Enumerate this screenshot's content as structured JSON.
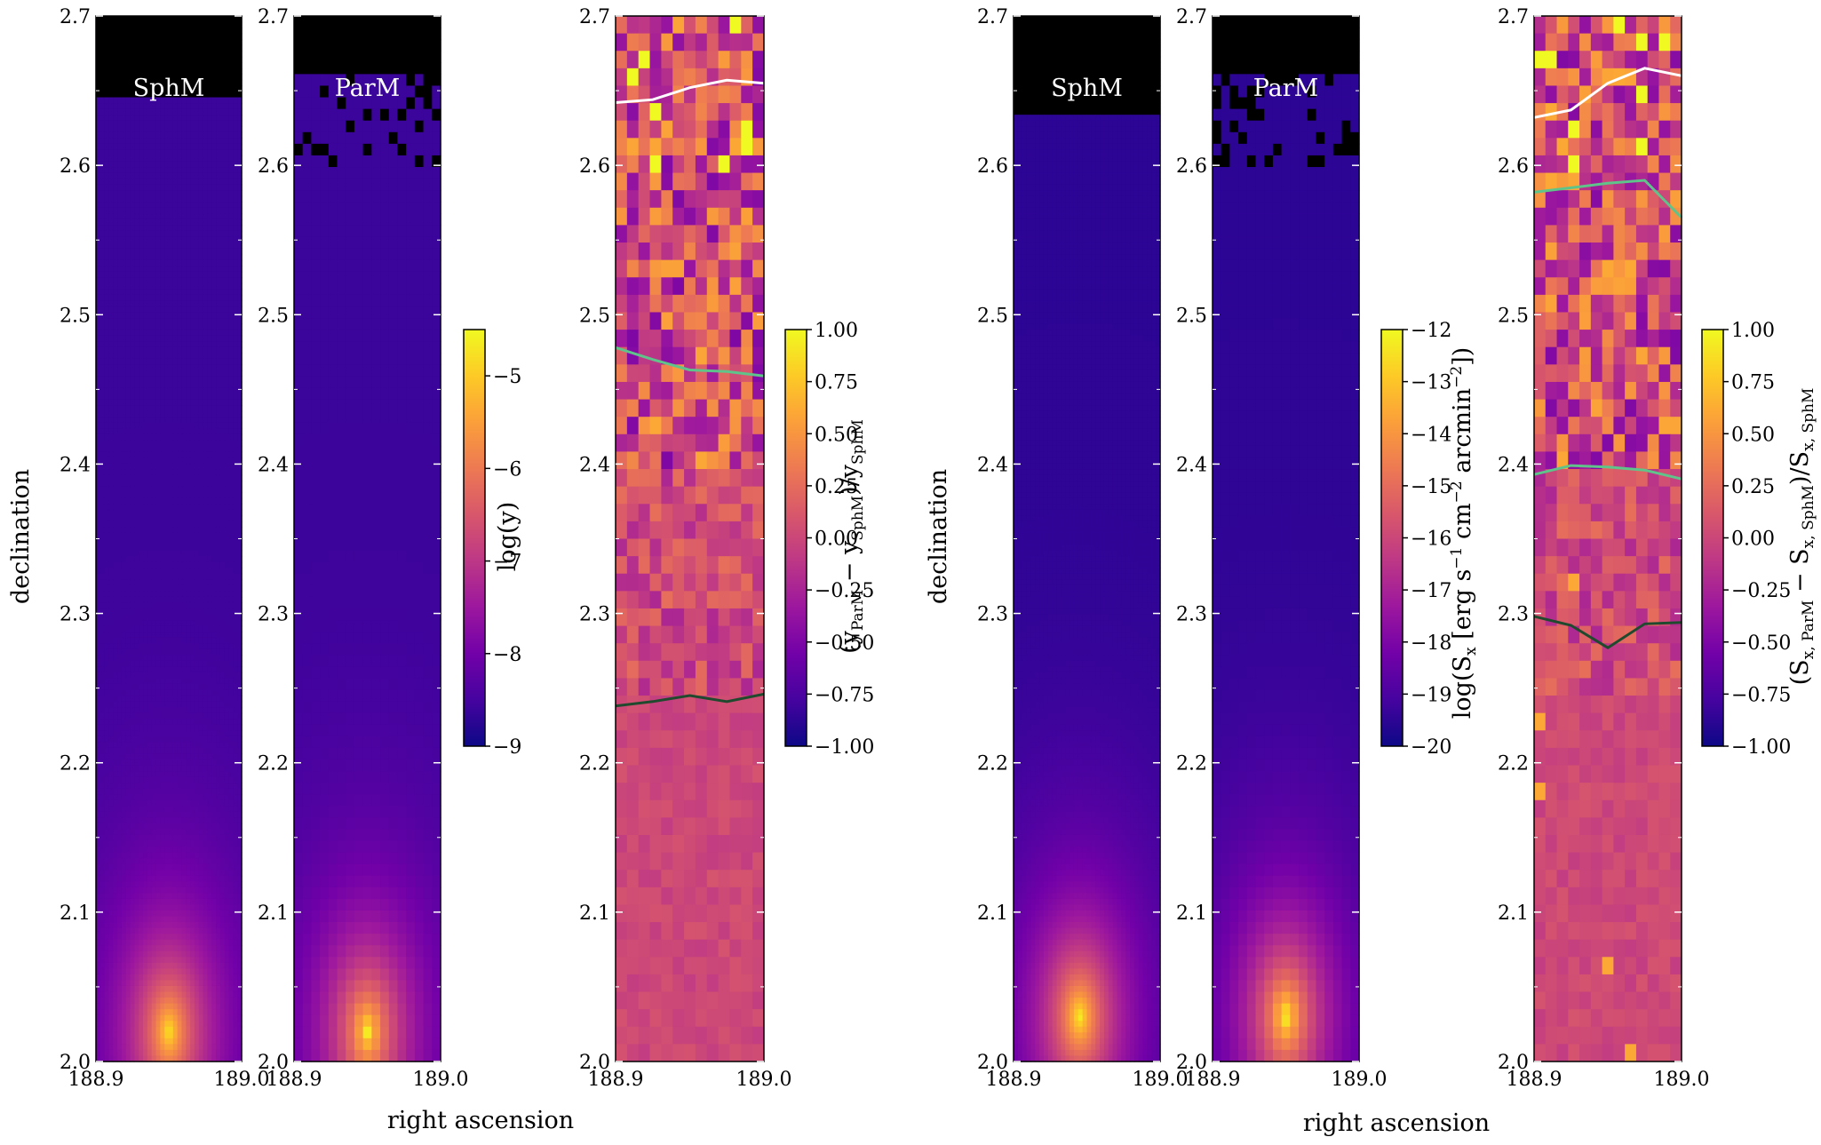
{
  "figure": {
    "xlabel": "right ascension",
    "ylabel": "declination"
  },
  "colors": {
    "plasma": [
      "#0d0887",
      "#46039f",
      "#7201a8",
      "#9c179e",
      "#bd3786",
      "#d8576b",
      "#ed7953",
      "#fb9f3a",
      "#fdca26",
      "#f0f921"
    ],
    "mask": "#000000",
    "contour_high": "#ffffff",
    "contour_mid": "#5fc48a",
    "contour_low": "#1f4a2e"
  },
  "colorbars": [
    {
      "label": "log(y)",
      "min": -9,
      "max": -4.5,
      "ticks": [
        "−5",
        "−6",
        "−7",
        "−8",
        "−9"
      ],
      "tick_values": [
        -5,
        -6,
        -7,
        -8,
        -9
      ]
    },
    {
      "label": "(y_ParM − y_SphM)/y_SphM",
      "min": -1.0,
      "max": 1.0,
      "ticks": [
        "1.00",
        "0.75",
        "0.50",
        "0.25",
        "0.00",
        "−0.25",
        "−0.50",
        "−0.75",
        "−1.00"
      ],
      "tick_values": [
        1.0,
        0.75,
        0.5,
        0.25,
        0.0,
        -0.25,
        -0.5,
        -0.75,
        -1.0
      ]
    },
    {
      "label": "log(S_x [erg s^-1 cm^-2 arcmin^-2])",
      "min": -20,
      "max": -12,
      "ticks": [
        "−12",
        "−13",
        "−14",
        "−15",
        "−16",
        "−17",
        "−18",
        "−19",
        "−20"
      ],
      "tick_values": [
        -12,
        -13,
        -14,
        -15,
        -16,
        -17,
        -18,
        -19,
        -20
      ]
    },
    {
      "label": "(S_x,ParM − S_x,SphM)/S_x,SphM",
      "min": -1.0,
      "max": 1.0,
      "ticks": [
        "1.00",
        "0.75",
        "0.50",
        "0.25",
        "0.00",
        "−0.25",
        "−0.50",
        "−0.75",
        "−1.00"
      ],
      "tick_values": [
        1.0,
        0.75,
        0.5,
        0.25,
        0.0,
        -0.25,
        -0.5,
        -0.75,
        -1.0
      ]
    }
  ],
  "chart_data": [
    {
      "type": "heatmap",
      "panel_label": "SphM",
      "quantity": "log(y)",
      "xlim": [
        188.9,
        189.0
      ],
      "ylim": [
        2.0,
        2.7
      ],
      "x_ticks": [
        "188.9",
        "189.0"
      ],
      "y_ticks": [
        "2.0",
        "2.1",
        "2.2",
        "2.3",
        "2.4",
        "2.5",
        "2.6",
        "2.7"
      ],
      "peak": {
        "ra": 188.95,
        "dec": 2.02,
        "value": -4.6
      },
      "background_value": -8.6,
      "masked_above_dec": 2.645
    },
    {
      "type": "heatmap",
      "panel_label": "ParM",
      "quantity": "log(y)",
      "xlim": [
        188.9,
        189.0
      ],
      "ylim": [
        2.0,
        2.7
      ],
      "x_ticks": [
        "188.9",
        "189.0"
      ],
      "y_ticks": [
        "2.0",
        "2.1",
        "2.2",
        "2.3",
        "2.4",
        "2.5",
        "2.6",
        "2.7"
      ],
      "peak": {
        "ra": 188.95,
        "dec": 2.02,
        "value": -4.6
      },
      "background_value": -8.6,
      "masked_above_dec": 2.66,
      "pixelated": true
    },
    {
      "type": "heatmap",
      "panel_label": "",
      "quantity": "(y_ParM − y_SphM)/y_SphM",
      "xlim": [
        188.9,
        189.0
      ],
      "ylim": [
        2.0,
        2.7
      ],
      "x_ticks": [
        "188.9",
        "189.0"
      ],
      "y_ticks": [
        "2.0",
        "2.1",
        "2.2",
        "2.3",
        "2.4",
        "2.5",
        "2.6",
        "2.7"
      ],
      "contours": [
        {
          "level": "high",
          "ra": [
            188.9,
            188.925,
            188.95,
            188.975,
            189.0
          ],
          "dec": [
            2.642,
            2.644,
            2.652,
            2.657,
            2.655
          ]
        },
        {
          "level": "mid",
          "ra": [
            188.9,
            188.925,
            188.95,
            188.975,
            189.0
          ],
          "dec": [
            2.478,
            2.47,
            2.463,
            2.462,
            2.459
          ]
        },
        {
          "level": "low",
          "ra": [
            188.9,
            188.925,
            188.95,
            188.975,
            189.0
          ],
          "dec": [
            2.238,
            2.241,
            2.245,
            2.241,
            2.246
          ]
        }
      ]
    },
    {
      "type": "heatmap",
      "panel_label": "SphM",
      "quantity": "log(S_x)",
      "xlim": [
        188.9,
        189.0
      ],
      "ylim": [
        2.0,
        2.7
      ],
      "x_ticks": [
        "188.9",
        "189.0"
      ],
      "y_ticks": [
        "2.0",
        "2.1",
        "2.2",
        "2.3",
        "2.4",
        "2.5",
        "2.6",
        "2.7"
      ],
      "peak": {
        "ra": 188.945,
        "dec": 2.03,
        "value": -12.0
      },
      "background_value": -19.5,
      "masked_above_dec": 2.635
    },
    {
      "type": "heatmap",
      "panel_label": "ParM",
      "quantity": "log(S_x)",
      "xlim": [
        188.9,
        189.0
      ],
      "ylim": [
        2.0,
        2.7
      ],
      "x_ticks": [
        "188.9",
        "189.0"
      ],
      "y_ticks": [
        "2.0",
        "2.1",
        "2.2",
        "2.3",
        "2.4",
        "2.5",
        "2.6",
        "2.7"
      ],
      "peak": {
        "ra": 188.95,
        "dec": 2.03,
        "value": -12.0
      },
      "background_value": -19.5,
      "masked_above_dec": 2.66,
      "pixelated": true
    },
    {
      "type": "heatmap",
      "panel_label": "",
      "quantity": "(S_x,ParM − S_x,SphM)/S_x,SphM",
      "xlim": [
        188.9,
        189.0
      ],
      "ylim": [
        2.0,
        2.7
      ],
      "x_ticks": [
        "188.9",
        "189.0"
      ],
      "y_ticks": [
        "2.0",
        "2.1",
        "2.2",
        "2.3",
        "2.4",
        "2.5",
        "2.6",
        "2.7"
      ],
      "contours": [
        {
          "level": "high",
          "ra": [
            188.9,
            188.925,
            188.95,
            188.975,
            189.0
          ],
          "dec": [
            2.632,
            2.637,
            2.655,
            2.665,
            2.66
          ]
        },
        {
          "level": "mid",
          "ra": [
            188.9,
            188.925,
            188.95,
            188.975,
            189.0
          ],
          "dec": [
            2.582,
            2.585,
            2.588,
            2.59,
            2.565
          ]
        },
        {
          "level": "mid",
          "ra": [
            188.9,
            188.925,
            188.95,
            188.975,
            189.0
          ],
          "dec": [
            2.393,
            2.399,
            2.398,
            2.396,
            2.39
          ]
        },
        {
          "level": "low",
          "ra": [
            188.9,
            188.925,
            188.95,
            188.975,
            189.0
          ],
          "dec": [
            2.298,
            2.292,
            2.277,
            2.293,
            2.294
          ]
        }
      ]
    }
  ]
}
